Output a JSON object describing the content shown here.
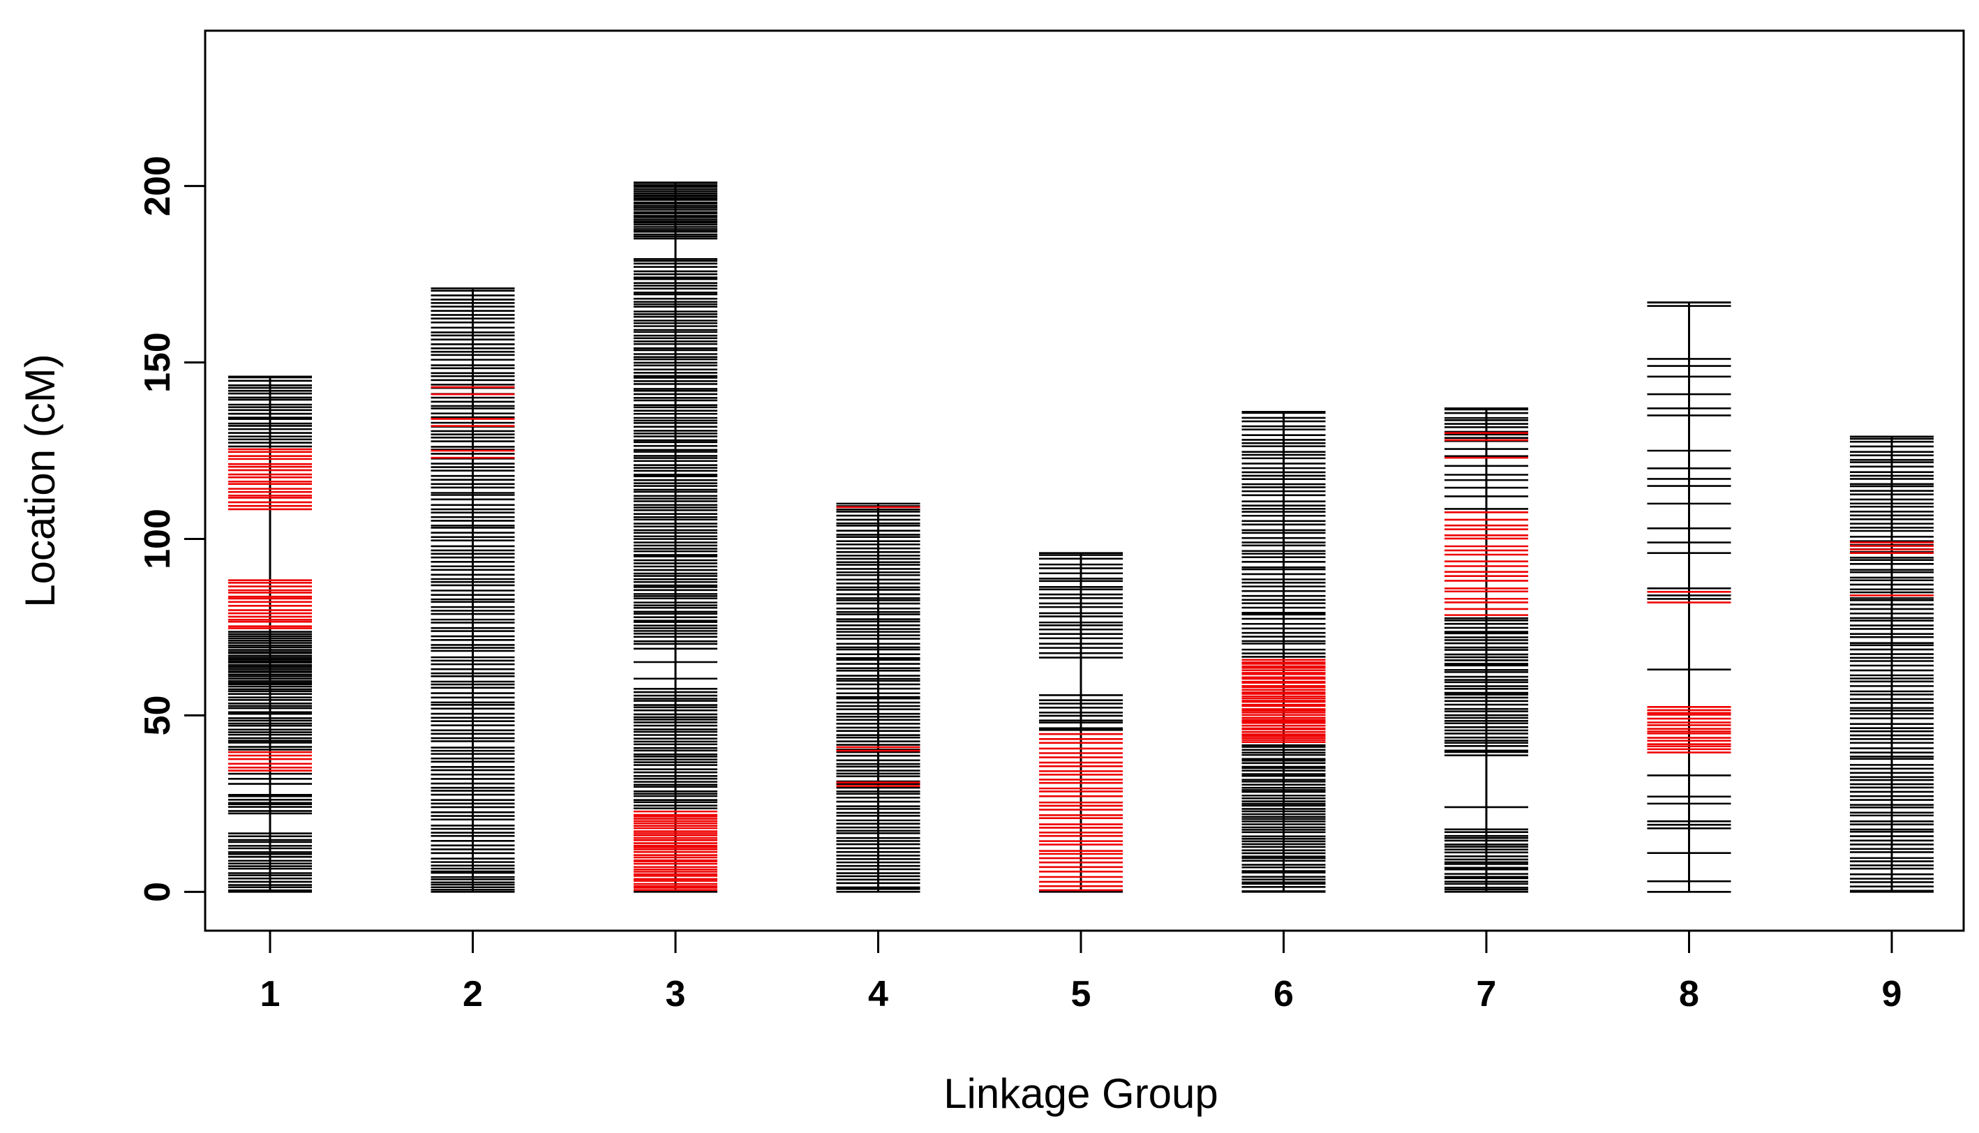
{
  "chart_data": {
    "type": "linkage-map",
    "title": "",
    "xlabel": "Linkage Group",
    "ylabel": "Location (cM)",
    "ylim": [
      -11,
      244
    ],
    "yticks": [
      0,
      50,
      100,
      150,
      200
    ],
    "ytick_labels": [
      "0",
      "50",
      "100",
      "150",
      "200"
    ],
    "groups": [
      {
        "label": "1",
        "length": 146,
        "black_ranges": [
          [
            0,
            17,
            20
          ],
          [
            22,
            28,
            8
          ],
          [
            30,
            34,
            3
          ],
          [
            40,
            58,
            22
          ],
          [
            58,
            70,
            22
          ],
          [
            70,
            74,
            6
          ],
          [
            89,
            108,
            0
          ],
          [
            126,
            146,
            22
          ]
        ],
        "red_ranges": [
          [
            34,
            40,
            6
          ],
          [
            74,
            89,
            16
          ],
          [
            108,
            126,
            18
          ]
        ],
        "black_markers": [],
        "red_markers": []
      },
      {
        "label": "2",
        "length": 171,
        "black_ranges": [
          [
            0,
            8,
            10
          ],
          [
            8,
            171,
            140
          ]
        ],
        "red_ranges": [],
        "black_markers": [],
        "red_markers": [
          123,
          125,
          132,
          134,
          141,
          143
        ]
      },
      {
        "label": "3",
        "length": 201,
        "black_ranges": [
          [
            23,
            58,
            40
          ],
          [
            58,
            70,
            3
          ],
          [
            70,
            90,
            24
          ],
          [
            90,
            125,
            40
          ],
          [
            125,
            145,
            22
          ],
          [
            145,
            180,
            40
          ],
          [
            180,
            185,
            0
          ],
          [
            185,
            201,
            30
          ]
        ],
        "red_ranges": [
          [
            0,
            23,
            34
          ]
        ],
        "black_markers": [],
        "red_markers": []
      },
      {
        "label": "4",
        "length": 110,
        "black_ranges": [
          [
            0,
            110,
            110
          ]
        ],
        "red_ranges": [],
        "black_markers": [],
        "red_markers": [
          30,
          31,
          40,
          41,
          109
        ]
      },
      {
        "label": "5",
        "length": 96,
        "black_ranges": [
          [
            45,
            56,
            10
          ],
          [
            56,
            66,
            0
          ],
          [
            66,
            96,
            24
          ]
        ],
        "red_ranges": [
          [
            0,
            45,
            36
          ]
        ],
        "black_markers": [],
        "red_markers": []
      },
      {
        "label": "6",
        "length": 136,
        "black_ranges": [
          [
            0,
            18,
            22
          ],
          [
            18,
            42,
            32
          ],
          [
            66,
            136,
            60
          ]
        ],
        "red_ranges": [
          [
            42,
            66,
            40
          ]
        ],
        "black_markers": [],
        "red_markers": []
      },
      {
        "label": "7",
        "length": 137,
        "black_ranges": [
          [
            0,
            18,
            22
          ],
          [
            38,
            78,
            44
          ],
          [
            108,
            127,
            8
          ],
          [
            127,
            137,
            10
          ]
        ],
        "red_ranges": [
          [
            78,
            108,
            20
          ]
        ],
        "black_markers": [
          24
        ],
        "red_markers": [
          123,
          128,
          130
        ]
      },
      {
        "label": "8",
        "length": 167,
        "black_ranges": [],
        "red_ranges": [
          [
            39,
            53,
            16
          ]
        ],
        "black_markers": [
          0,
          3,
          11,
          18,
          19,
          20,
          25,
          27,
          33,
          63,
          83,
          84,
          86,
          96,
          99,
          103,
          110,
          115,
          117,
          120,
          125,
          135,
          137,
          141,
          146,
          149,
          151,
          166,
          167
        ],
        "red_markers": [
          82,
          85
        ]
      },
      {
        "label": "9",
        "length": 129,
        "black_ranges": [
          [
            0,
            129,
            112
          ]
        ],
        "red_ranges": [],
        "black_markers": [],
        "red_markers": [
          84,
          96,
          97,
          98,
          99
        ]
      }
    ],
    "colors": {
      "black_marker": "#000000",
      "red_marker": "#ee0000",
      "axis": "#000000",
      "frame": "#000000"
    },
    "grid": false,
    "legend": "none"
  }
}
